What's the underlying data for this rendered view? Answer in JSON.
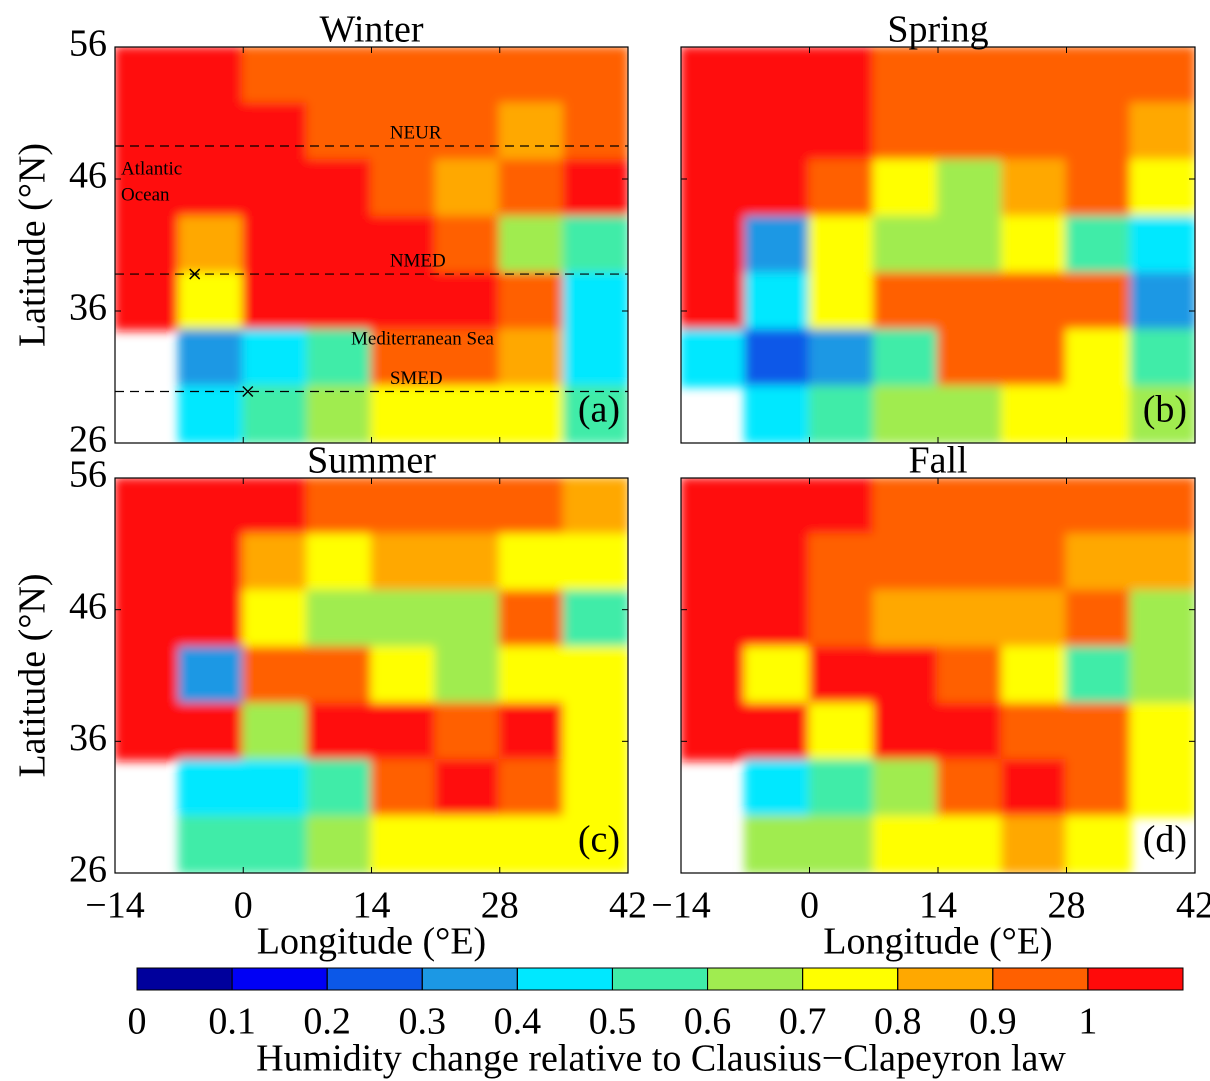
{
  "figure": {
    "xlim": [
      -14,
      42
    ],
    "ylim": [
      26,
      56
    ],
    "xticks": [
      {
        "value": -14,
        "label": "−14"
      },
      0,
      14,
      28,
      42
    ],
    "yticks": [
      26,
      36,
      46,
      56
    ],
    "xlabel": "Longitude (°E)",
    "ylabel": "Latitude (°N)",
    "panels": [
      {
        "title": "Winter",
        "label": "(a)",
        "values": [
          [
            1.05,
            1.05,
            0.95,
            0.95,
            0.95,
            0.92,
            0.92,
            0.92
          ],
          [
            1.05,
            1.05,
            1.05,
            0.95,
            0.92,
            0.92,
            0.85,
            0.92
          ],
          [
            1.05,
            1.05,
            1.05,
            1.05,
            0.95,
            0.85,
            0.92,
            1.05
          ],
          [
            1.05,
            0.85,
            1.05,
            1.05,
            1.05,
            0.95,
            0.65,
            0.55
          ],
          [
            1.05,
            0.75,
            1.05,
            1.05,
            1.05,
            1.05,
            0.92,
            0.45
          ],
          [
            null,
            0.35,
            0.45,
            0.55,
            0.95,
            0.92,
            0.85,
            0.45
          ],
          [
            null,
            0.45,
            0.55,
            0.65,
            0.75,
            0.75,
            0.75,
            0.55
          ]
        ],
        "regions": [
          {
            "name": "NEUR",
            "lat": 48.5
          },
          {
            "name": "NMED",
            "lat": 38.8,
            "lon": -5.3
          },
          {
            "name": "SMED",
            "lat": 29.9,
            "lon": 0.5
          }
        ],
        "annotations": [
          [
            "Atlantic",
            "Ocean"
          ],
          [
            "Mediterranean Sea"
          ]
        ]
      },
      {
        "title": "Spring",
        "label": "(b)",
        "values": [
          [
            1.05,
            1.05,
            1.05,
            0.95,
            0.95,
            0.95,
            0.95,
            0.92
          ],
          [
            1.05,
            1.05,
            1.05,
            0.95,
            0.95,
            0.95,
            0.95,
            0.85
          ],
          [
            1.05,
            1.05,
            0.95,
            0.75,
            0.65,
            0.85,
            0.95,
            0.75
          ],
          [
            1.05,
            0.35,
            0.75,
            0.65,
            0.65,
            0.75,
            0.55,
            0.45
          ],
          [
            1.05,
            0.45,
            0.75,
            0.95,
            0.95,
            0.95,
            0.92,
            0.35
          ],
          [
            0.45,
            0.25,
            0.35,
            0.55,
            0.95,
            0.95,
            0.75,
            0.55
          ],
          [
            null,
            0.45,
            0.55,
            0.65,
            0.65,
            0.75,
            0.75,
            0.65
          ]
        ]
      },
      {
        "title": "Summer",
        "label": "(c)",
        "values": [
          [
            1.05,
            1.05,
            1.05,
            0.95,
            0.95,
            0.95,
            0.92,
            0.85
          ],
          [
            1.05,
            1.05,
            0.85,
            0.75,
            0.85,
            0.85,
            0.75,
            0.75
          ],
          [
            1.05,
            1.05,
            0.75,
            0.65,
            0.65,
            0.65,
            0.95,
            0.55
          ],
          [
            1.05,
            0.35,
            0.95,
            0.95,
            0.75,
            0.65,
            0.75,
            0.75
          ],
          [
            1.05,
            1.05,
            0.65,
            1.05,
            1.05,
            0.95,
            1.05,
            0.75
          ],
          [
            null,
            0.45,
            0.45,
            0.55,
            0.95,
            1.05,
            0.95,
            0.75
          ],
          [
            null,
            0.55,
            0.55,
            0.65,
            0.75,
            0.75,
            0.75,
            0.75
          ]
        ]
      },
      {
        "title": "Fall",
        "label": "(d)",
        "values": [
          [
            1.05,
            1.05,
            1.05,
            0.95,
            0.95,
            0.95,
            0.95,
            0.92
          ],
          [
            1.05,
            1.05,
            0.95,
            0.95,
            0.95,
            0.95,
            0.85,
            0.85
          ],
          [
            1.05,
            1.05,
            0.95,
            0.85,
            0.85,
            0.85,
            0.95,
            0.65
          ],
          [
            1.05,
            0.75,
            1.05,
            1.05,
            0.95,
            0.75,
            0.55,
            0.65
          ],
          [
            1.05,
            1.05,
            0.75,
            1.05,
            1.05,
            0.95,
            0.95,
            0.75
          ],
          [
            null,
            0.45,
            0.55,
            0.65,
            0.95,
            1.05,
            0.95,
            0.75
          ],
          [
            null,
            0.65,
            0.65,
            0.75,
            0.75,
            0.85,
            0.75,
            null
          ]
        ]
      }
    ],
    "colorbar": {
      "title": "Humidity change relative to Clausius−Clapeyron law",
      "lim": [
        0,
        1.1
      ],
      "ticks": [
        0,
        0.1,
        0.2,
        0.3,
        0.4,
        0.5,
        0.6,
        0.7,
        0.8,
        0.9,
        1
      ],
      "colors": [
        "#00009c",
        "#0000f5",
        "#0c58e8",
        "#1c98e4",
        "#00e8ff",
        "#40eca8",
        "#a0ec50",
        "#ffff00",
        "#ffa800",
        "#ff6000",
        "#ff0a0a"
      ]
    }
  }
}
